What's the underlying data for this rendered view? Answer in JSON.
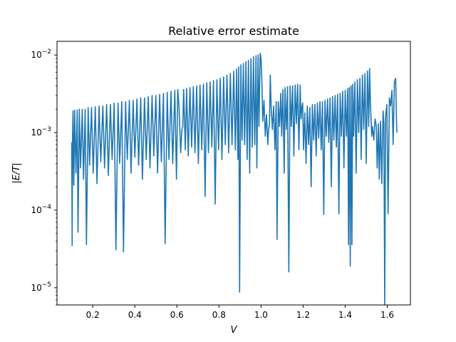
{
  "chart_data": {
    "type": "line",
    "title": "Relative error estimate",
    "xlabel": "V",
    "ylabel": "|E/T|",
    "yscale": "log",
    "xlim": [
      0.03,
      1.71
    ],
    "ylim": [
      6e-06,
      0.015
    ],
    "grid": false,
    "line_color": "#1f77b4",
    "x_ticks": [
      {
        "value": 0.2,
        "label": "0.2"
      },
      {
        "value": 0.4,
        "label": "0.4"
      },
      {
        "value": 0.6,
        "label": "0.6"
      },
      {
        "value": 0.8,
        "label": "0.8"
      },
      {
        "value": 1.0,
        "label": "1.0"
      },
      {
        "value": 1.2,
        "label": "1.2"
      },
      {
        "value": 1.4,
        "label": "1.4"
      },
      {
        "value": 1.6,
        "label": "1.6"
      }
    ],
    "y_ticks": [
      {
        "value": 1e-05,
        "base": "10",
        "exp": "−5"
      },
      {
        "value": 0.0001,
        "base": "10",
        "exp": "−4"
      },
      {
        "value": 0.001,
        "base": "10",
        "exp": "−3"
      },
      {
        "value": 0.01,
        "base": "10",
        "exp": "−2"
      }
    ],
    "series": [
      {
        "points": [
          [
            0.1,
            0.00075
          ],
          [
            0.102,
            3.5e-05
          ],
          [
            0.104,
            0.0009
          ],
          [
            0.106,
            0.0019
          ],
          [
            0.11,
            0.00021
          ],
          [
            0.114,
            0.00195
          ],
          [
            0.12,
            0.0003
          ],
          [
            0.126,
            0.00195
          ],
          [
            0.13,
            5.2e-05
          ],
          [
            0.136,
            0.002
          ],
          [
            0.142,
            0.00035
          ],
          [
            0.15,
            0.002
          ],
          [
            0.156,
            0.00025
          ],
          [
            0.164,
            0.002
          ],
          [
            0.17,
            3.6e-05
          ],
          [
            0.178,
            0.0021
          ],
          [
            0.185,
            0.00038
          ],
          [
            0.194,
            0.0021
          ],
          [
            0.202,
            0.0003
          ],
          [
            0.212,
            0.00215
          ],
          [
            0.22,
            0.00022
          ],
          [
            0.23,
            0.0022
          ],
          [
            0.238,
            0.00042
          ],
          [
            0.248,
            0.0022
          ],
          [
            0.256,
            0.00035
          ],
          [
            0.266,
            0.0023
          ],
          [
            0.274,
            0.00028
          ],
          [
            0.284,
            0.0023
          ],
          [
            0.292,
            0.00045
          ],
          [
            0.302,
            0.0024
          ],
          [
            0.31,
            3.1e-05
          ],
          [
            0.32,
            0.0024
          ],
          [
            0.328,
            0.0004
          ],
          [
            0.338,
            0.0025
          ],
          [
            0.346,
            2.9e-05
          ],
          [
            0.356,
            0.0025
          ],
          [
            0.364,
            0.00045
          ],
          [
            0.374,
            0.0026
          ],
          [
            0.382,
            0.0003
          ],
          [
            0.392,
            0.0026
          ],
          [
            0.4,
            0.00048
          ],
          [
            0.41,
            0.0027
          ],
          [
            0.418,
            0.00038
          ],
          [
            0.428,
            0.0028
          ],
          [
            0.436,
            0.00025
          ],
          [
            0.446,
            0.0028
          ],
          [
            0.454,
            0.00045
          ],
          [
            0.464,
            0.0029
          ],
          [
            0.472,
            0.00035
          ],
          [
            0.482,
            0.003
          ],
          [
            0.49,
            0.0005
          ],
          [
            0.5,
            0.003
          ],
          [
            0.508,
            0.0003
          ],
          [
            0.518,
            0.0031
          ],
          [
            0.526,
            0.00042
          ],
          [
            0.536,
            0.0032
          ],
          [
            0.544,
            3.7e-05
          ],
          [
            0.554,
            0.0033
          ],
          [
            0.562,
            0.00045
          ],
          [
            0.572,
            0.0034
          ],
          [
            0.58,
            0.0004
          ],
          [
            0.59,
            0.0035
          ],
          [
            0.598,
            0.00025
          ],
          [
            0.604,
            0.0036
          ],
          [
            0.61,
            0.0022
          ],
          [
            0.618,
            0.00055
          ],
          [
            0.624,
            0.0011
          ],
          [
            0.628,
            0.0012
          ],
          [
            0.632,
            0.0036
          ],
          [
            0.64,
            0.0006
          ],
          [
            0.646,
            0.0037
          ],
          [
            0.654,
            0.0005
          ],
          [
            0.662,
            0.0038
          ],
          [
            0.67,
            0.00065
          ],
          [
            0.678,
            0.0039
          ],
          [
            0.686,
            0.00055
          ],
          [
            0.694,
            0.004
          ],
          [
            0.702,
            0.0004
          ],
          [
            0.71,
            0.0041
          ],
          [
            0.718,
            0.0006
          ],
          [
            0.726,
            0.0042
          ],
          [
            0.734,
            0.00015
          ],
          [
            0.742,
            0.0044
          ],
          [
            0.75,
            0.00055
          ],
          [
            0.758,
            0.0045
          ],
          [
            0.766,
            0.00065
          ],
          [
            0.774,
            0.0047
          ],
          [
            0.782,
            0.00012
          ],
          [
            0.79,
            0.0048
          ],
          [
            0.798,
            0.0006
          ],
          [
            0.806,
            0.005
          ],
          [
            0.814,
            0.00045
          ],
          [
            0.822,
            0.0052
          ],
          [
            0.83,
            0.0007
          ],
          [
            0.838,
            0.0055
          ],
          [
            0.846,
            0.00055
          ],
          [
            0.854,
            0.0058
          ],
          [
            0.862,
            0.0007
          ],
          [
            0.87,
            0.0062
          ],
          [
            0.878,
            0.0006
          ],
          [
            0.884,
            0.0066
          ],
          [
            0.89,
            0.00045
          ],
          [
            0.894,
            0.007
          ],
          [
            0.898,
            8.8e-06
          ],
          [
            0.904,
            0.0075
          ],
          [
            0.91,
            0.0008
          ],
          [
            0.916,
            0.0078
          ],
          [
            0.922,
            0.0007
          ],
          [
            0.928,
            0.0082
          ],
          [
            0.934,
            0.00045
          ],
          [
            0.94,
            0.0085
          ],
          [
            0.946,
            0.0003
          ],
          [
            0.952,
            0.009
          ],
          [
            0.958,
            0.00065
          ],
          [
            0.964,
            0.0095
          ],
          [
            0.97,
            0.0007
          ],
          [
            0.976,
            0.0098
          ],
          [
            0.98,
            0.00035
          ],
          [
            0.986,
            0.01
          ],
          [
            0.99,
            0.0012
          ],
          [
            0.996,
            0.0105
          ],
          [
            1.0,
            0.009
          ],
          [
            1.004,
            0.0045
          ],
          [
            1.008,
            0.0014
          ],
          [
            1.014,
            0.0026
          ],
          [
            1.02,
            0.0009
          ],
          [
            1.026,
            0.0017
          ],
          [
            1.032,
            0.0007
          ],
          [
            1.036,
            0.0011
          ],
          [
            1.04,
            0.0013
          ],
          [
            1.044,
            0.0055
          ],
          [
            1.048,
            0.0021
          ],
          [
            1.054,
            0.0011
          ],
          [
            1.06,
            0.0022
          ],
          [
            1.066,
            0.0006
          ],
          [
            1.072,
            0.0025
          ],
          [
            1.076,
            4.2e-05
          ],
          [
            1.082,
            0.0025
          ],
          [
            1.088,
            0.0012
          ],
          [
            1.094,
            0.0032
          ],
          [
            1.098,
            0.0009
          ],
          [
            1.104,
            0.0036
          ],
          [
            1.11,
            0.0003
          ],
          [
            1.114,
            0.0038
          ],
          [
            1.12,
            0.0011
          ],
          [
            1.126,
            0.0039
          ],
          [
            1.132,
            1.6e-05
          ],
          [
            1.138,
            0.004
          ],
          [
            1.144,
            0.0012
          ],
          [
            1.15,
            0.004
          ],
          [
            1.156,
            0.0005
          ],
          [
            1.162,
            0.0041
          ],
          [
            1.168,
            0.0013
          ],
          [
            1.174,
            0.0042
          ],
          [
            1.18,
            0.0006
          ],
          [
            1.186,
            0.0041
          ],
          [
            1.19,
            0.0015
          ],
          [
            1.194,
            0.0021
          ],
          [
            1.198,
            0.0024
          ],
          [
            1.202,
            0.0006
          ],
          [
            1.208,
            0.0018
          ],
          [
            1.214,
            0.0004
          ],
          [
            1.22,
            0.0022
          ],
          [
            1.226,
            0.0007
          ],
          [
            1.232,
            0.0021
          ],
          [
            1.238,
            0.0002
          ],
          [
            1.244,
            0.0023
          ],
          [
            1.25,
            0.0008
          ],
          [
            1.256,
            0.0023
          ],
          [
            1.262,
            0.0005
          ],
          [
            1.268,
            0.0024
          ],
          [
            1.274,
            0.00085
          ],
          [
            1.28,
            0.0025
          ],
          [
            1.286,
            0.0006
          ],
          [
            1.292,
            0.0025
          ],
          [
            1.298,
            8.8e-05
          ],
          [
            1.304,
            0.0026
          ],
          [
            1.31,
            0.0009
          ],
          [
            1.316,
            0.0027
          ],
          [
            1.322,
            0.00075
          ],
          [
            1.328,
            0.0028
          ],
          [
            1.334,
            0.0002
          ],
          [
            1.34,
            0.0029
          ],
          [
            1.346,
            0.0008
          ],
          [
            1.352,
            0.003
          ],
          [
            1.358,
            0.00065
          ],
          [
            1.364,
            0.0031
          ],
          [
            1.37,
            9e-05
          ],
          [
            1.376,
            0.0032
          ],
          [
            1.382,
            0.0009
          ],
          [
            1.388,
            0.0034
          ],
          [
            1.394,
            0.00035
          ],
          [
            1.4,
            0.0035
          ],
          [
            1.406,
            0.0009
          ],
          [
            1.412,
            0.0037
          ],
          [
            1.416,
            3.6e-05
          ],
          [
            1.42,
            0.0038
          ],
          [
            1.424,
            1.9e-05
          ],
          [
            1.428,
            0.004
          ],
          [
            1.432,
            3.6e-05
          ],
          [
            1.436,
            0.0042
          ],
          [
            1.44,
            0.0009
          ],
          [
            1.446,
            0.0045
          ],
          [
            1.452,
            0.0003
          ],
          [
            1.458,
            0.0048
          ],
          [
            1.464,
            0.001
          ],
          [
            1.47,
            0.005
          ],
          [
            1.476,
            0.00045
          ],
          [
            1.482,
            0.0055
          ],
          [
            1.488,
            0.0011
          ],
          [
            1.494,
            0.0058
          ],
          [
            1.5,
            0.0004
          ],
          [
            1.506,
            0.0062
          ],
          [
            1.512,
            0.0012
          ],
          [
            1.516,
            0.0067
          ],
          [
            1.52,
            0.0025
          ],
          [
            1.526,
            0.0009
          ],
          [
            1.53,
            0.0012
          ],
          [
            1.536,
            0.0008
          ],
          [
            1.542,
            0.0015
          ],
          [
            1.548,
            0.0012
          ],
          [
            1.552,
            0.00035
          ],
          [
            1.558,
            0.0013
          ],
          [
            1.562,
            0.00025
          ],
          [
            1.568,
            0.0014
          ],
          [
            1.574,
            0.00022
          ],
          [
            1.58,
            0.0019
          ],
          [
            1.584,
            0.0013
          ],
          [
            1.588,
            5.5e-06
          ],
          [
            1.592,
            0.0016
          ],
          [
            1.598,
            0.0023
          ],
          [
            1.604,
            9e-05
          ],
          [
            1.61,
            0.0028
          ],
          [
            1.616,
            0.0022
          ],
          [
            1.622,
            0.0035
          ],
          [
            1.628,
            0.0007
          ],
          [
            1.634,
            0.0045
          ],
          [
            1.64,
            0.005
          ],
          [
            1.644,
            0.0014
          ],
          [
            1.646,
            0.001
          ]
        ]
      }
    ]
  }
}
